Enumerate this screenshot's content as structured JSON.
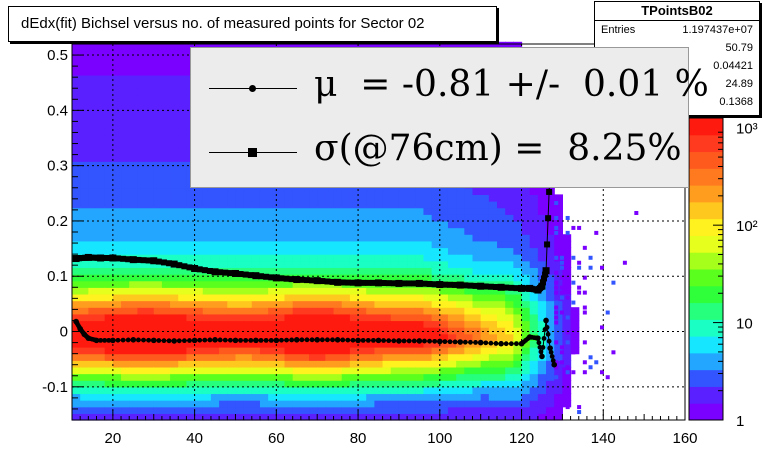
{
  "title": "dEdx(fit) Bichsel versus no. of measured points for Sector 02",
  "stats": {
    "name": "TPointsB02",
    "entries_label": "Entries",
    "entries_value": "1.197437e+07",
    "values": [
      "50.79",
      "0.04421",
      "24.89",
      "0.1368"
    ]
  },
  "legend": {
    "items": [
      {
        "label": "μ  = -0.81 +/-  0.01 %",
        "marker": "dot"
      },
      {
        "label": "σ(@76cm) =  8.25%",
        "marker": "square"
      }
    ]
  },
  "colorbar": {
    "tick_labels": [
      "1",
      "10",
      "10²",
      "10³"
    ],
    "colors": [
      "#7a00ff",
      "#5a20ff",
      "#3355ff",
      "#22a6ff",
      "#16e6ff",
      "#19ffc4",
      "#25ff7d",
      "#2eff3a",
      "#5aff1e",
      "#a5ff1a",
      "#e6ff1c",
      "#fff21e",
      "#ffc81e",
      "#ff9e1e",
      "#ff7a1e",
      "#ff5a1e",
      "#ff3a1e",
      "#ff1a10"
    ]
  },
  "chart_data": {
    "type": "heatmap",
    "title": "dEdx(fit) Bichsel versus no. of measured points for Sector 02",
    "xlabel": "",
    "ylabel": "",
    "xlim": [
      10,
      160
    ],
    "ylim": [
      -0.16,
      0.52
    ],
    "x_ticks": [
      20,
      40,
      60,
      80,
      100,
      120,
      140,
      160
    ],
    "y_ticks": [
      -0.1,
      0,
      0.1,
      0.2,
      0.3,
      0.4,
      0.5
    ],
    "z_scale": "log",
    "zlim": [
      1,
      1000
    ],
    "grid": true,
    "series": [
      {
        "name": "mean",
        "marker": "dot",
        "x": [
          11,
          12,
          13,
          14,
          16,
          20,
          25,
          30,
          35,
          40,
          45,
          50,
          55,
          60,
          65,
          70,
          75,
          80,
          85,
          90,
          95,
          100,
          105,
          110,
          115,
          120,
          122,
          124,
          125,
          126,
          127,
          128
        ],
        "y": [
          0.018,
          0.005,
          -0.005,
          -0.012,
          -0.016,
          -0.016,
          -0.015,
          -0.016,
          -0.017,
          -0.016,
          -0.015,
          -0.016,
          -0.016,
          -0.016,
          -0.015,
          -0.015,
          -0.015,
          -0.016,
          -0.016,
          -0.017,
          -0.017,
          -0.018,
          -0.019,
          -0.02,
          -0.022,
          -0.022,
          -0.01,
          -0.012,
          -0.045,
          0.02,
          -0.03,
          -0.06
        ]
      },
      {
        "name": "sigma",
        "marker": "square",
        "x": [
          11,
          14,
          17,
          20,
          25,
          30,
          35,
          40,
          45,
          50,
          55,
          60,
          65,
          70,
          75,
          80,
          85,
          90,
          95,
          100,
          105,
          110,
          115,
          120,
          122,
          124,
          125,
          126,
          127
        ],
        "y": [
          0.132,
          0.134,
          0.133,
          0.133,
          0.13,
          0.128,
          0.122,
          0.114,
          0.108,
          0.105,
          0.101,
          0.097,
          0.094,
          0.092,
          0.089,
          0.088,
          0.088,
          0.087,
          0.087,
          0.085,
          0.084,
          0.082,
          0.08,
          0.078,
          0.078,
          0.075,
          0.082,
          0.11,
          0.3
        ]
      }
    ]
  }
}
